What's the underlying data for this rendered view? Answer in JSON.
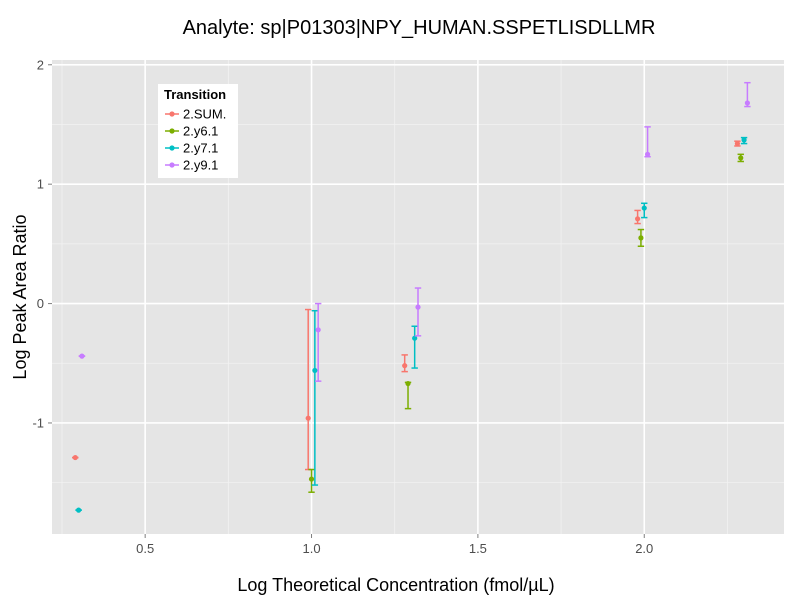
{
  "chart_data": {
    "type": "scatter",
    "title": "Analyte: sp|P01303|NPY_HUMAN.SSPETLISDLLMR",
    "xlabel": "Log Theoretical Concentration (fmol/µL)",
    "ylabel": "Log Peak Area Ratio",
    "xlim": [
      0.22,
      2.42
    ],
    "ylim": [
      -1.93,
      2.04
    ],
    "x_ticks": [
      0.5,
      1.0,
      1.5,
      2.0
    ],
    "x_tick_labels": [
      "0.5",
      "1.0",
      "1.5",
      "2.0"
    ],
    "y_ticks": [
      -1,
      0,
      1,
      2
    ],
    "y_tick_labels": [
      "-1",
      "0",
      "1",
      "2"
    ],
    "grid": true,
    "legend": {
      "title": "Transition",
      "placement": "top-left"
    },
    "error_bars": true,
    "series": [
      {
        "name": "2.SUM.",
        "color": "#f8766d",
        "points": [
          {
            "x": 0.29,
            "y": -1.29,
            "ymin": -1.29,
            "ymax": -1.29
          },
          {
            "x": 0.99,
            "y": -0.96,
            "ymin": -1.39,
            "ymax": -0.05
          },
          {
            "x": 1.28,
            "y": -0.52,
            "ymin": -0.57,
            "ymax": -0.43
          },
          {
            "x": 1.98,
            "y": 0.71,
            "ymin": 0.67,
            "ymax": 0.78
          },
          {
            "x": 2.28,
            "y": 1.34,
            "ymin": 1.32,
            "ymax": 1.36
          }
        ]
      },
      {
        "name": "2.y6.1",
        "color": "#7cae00",
        "points": [
          {
            "x": 1.0,
            "y": -1.47,
            "ymin": -1.58,
            "ymax": -1.39
          },
          {
            "x": 1.29,
            "y": -0.67,
            "ymin": -0.88,
            "ymax": -0.66
          },
          {
            "x": 1.99,
            "y": 0.55,
            "ymin": 0.48,
            "ymax": 0.62
          },
          {
            "x": 2.29,
            "y": 1.22,
            "ymin": 1.19,
            "ymax": 1.25
          }
        ]
      },
      {
        "name": "2.y7.1",
        "color": "#00bfc4",
        "points": [
          {
            "x": 0.3,
            "y": -1.73,
            "ymin": -1.73,
            "ymax": -1.73
          },
          {
            "x": 1.01,
            "y": -0.56,
            "ymin": -1.52,
            "ymax": -0.06
          },
          {
            "x": 1.31,
            "y": -0.29,
            "ymin": -0.54,
            "ymax": -0.19
          },
          {
            "x": 2.0,
            "y": 0.8,
            "ymin": 0.72,
            "ymax": 0.84
          },
          {
            "x": 2.3,
            "y": 1.37,
            "ymin": 1.34,
            "ymax": 1.39
          }
        ]
      },
      {
        "name": "2.y9.1",
        "color": "#c77cff",
        "points": [
          {
            "x": 0.31,
            "y": -0.44,
            "ymin": -0.44,
            "ymax": -0.44
          },
          {
            "x": 1.02,
            "y": -0.22,
            "ymin": -0.65,
            "ymax": 0.0
          },
          {
            "x": 1.32,
            "y": -0.03,
            "ymin": -0.27,
            "ymax": 0.13
          },
          {
            "x": 2.01,
            "y": 1.25,
            "ymin": 1.23,
            "ymax": 1.48
          },
          {
            "x": 2.31,
            "y": 1.68,
            "ymin": 1.65,
            "ymax": 1.85
          }
        ]
      }
    ]
  }
}
